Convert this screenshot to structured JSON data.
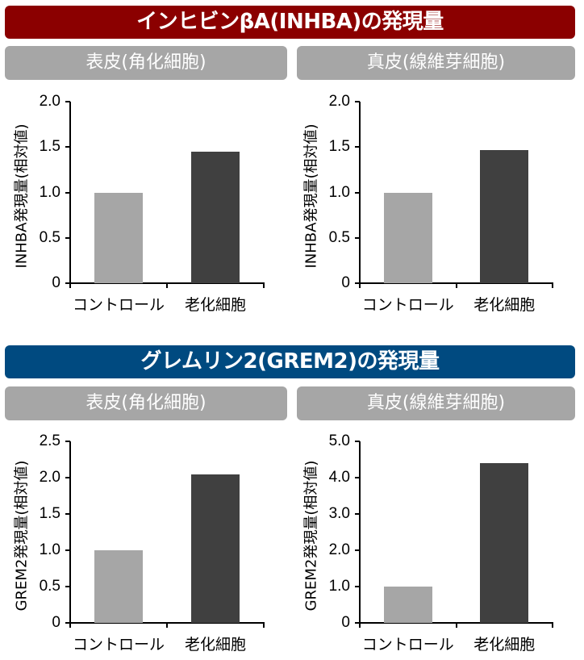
{
  "sections": [
    {
      "title": "インヒビンβA(INHBA)の発現量",
      "color": "#8b0000",
      "panels": [
        {
          "subtitle": "表皮(角化細胞)"
        },
        {
          "subtitle": "真皮(線維芽細胞)"
        }
      ]
    },
    {
      "title": "グレムリン2(GREM2)の発現量",
      "color": "#004a80",
      "panels": [
        {
          "subtitle": "表皮(角化細胞)"
        },
        {
          "subtitle": "真皮(線維芽細胞)"
        }
      ]
    }
  ],
  "colors": {
    "control_bar": "#a6a6a6",
    "aging_bar": "#404040",
    "subtitle_bg": "#a6a6a6"
  },
  "chart_data": [
    {
      "type": "bar",
      "title": "表皮(角化細胞)",
      "section": "インヒビンβA(INHBA)の発現量",
      "categories": [
        "コントロール",
        "老化細胞"
      ],
      "values": [
        1.0,
        1.45
      ],
      "xlabel": "",
      "ylabel": "INHBA発現量(相対値)",
      "ylim": [
        0,
        2.0
      ],
      "yticks": [
        "0",
        "0.5",
        "1.0",
        "1.5",
        "2.0"
      ],
      "ytick_values": [
        0,
        0.5,
        1.0,
        1.5,
        2.0
      ],
      "grid": false,
      "legend": null
    },
    {
      "type": "bar",
      "title": "真皮(線維芽細胞)",
      "section": "インヒビンβA(INHBA)の発現量",
      "categories": [
        "コントロール",
        "老化細胞"
      ],
      "values": [
        1.0,
        1.47
      ],
      "xlabel": "",
      "ylabel": "INHBA発現量(相対値)",
      "ylim": [
        0,
        2.0
      ],
      "yticks": [
        "0",
        "0.5",
        "1.0",
        "1.5",
        "2.0"
      ],
      "ytick_values": [
        0,
        0.5,
        1.0,
        1.5,
        2.0
      ],
      "grid": false,
      "legend": null
    },
    {
      "type": "bar",
      "title": "表皮(角化細胞)",
      "section": "グレムリン2(GREM2)の発現量",
      "categories": [
        "コントロール",
        "老化細胞"
      ],
      "values": [
        1.0,
        2.05
      ],
      "xlabel": "",
      "ylabel": "GREM2発現量(相対値)",
      "ylim": [
        0,
        2.5
      ],
      "yticks": [
        "0",
        "0.5",
        "1.0",
        "1.5",
        "2.0",
        "2.5"
      ],
      "ytick_values": [
        0,
        0.5,
        1.0,
        1.5,
        2.0,
        2.5
      ],
      "grid": false,
      "legend": null
    },
    {
      "type": "bar",
      "title": "真皮(線維芽細胞)",
      "section": "グレムリン2(GREM2)の発現量",
      "categories": [
        "コントロール",
        "老化細胞"
      ],
      "values": [
        1.0,
        4.4
      ],
      "xlabel": "",
      "ylabel": "GREM2発現量(相対値)",
      "ylim": [
        0,
        5.0
      ],
      "yticks": [
        "0",
        "1.0",
        "2.0",
        "3.0",
        "4.0",
        "5.0"
      ],
      "ytick_values": [
        0,
        1.0,
        2.0,
        3.0,
        4.0,
        5.0
      ],
      "grid": false,
      "legend": null
    }
  ]
}
